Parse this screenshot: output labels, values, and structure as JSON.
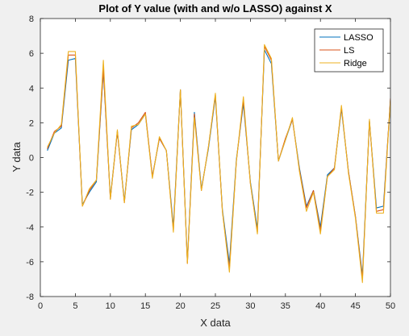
{
  "chart_data": {
    "type": "line",
    "title": "Plot of Y value (with and w/o LASSO) against X",
    "xlabel": "X data",
    "ylabel": "Y data",
    "xlim": [
      0,
      50
    ],
    "ylim": [
      -8,
      8
    ],
    "xticks": [
      0,
      5,
      10,
      15,
      20,
      25,
      30,
      35,
      40,
      45,
      50
    ],
    "yticks": [
      -8,
      -6,
      -4,
      -2,
      0,
      2,
      4,
      6,
      8
    ],
    "grid": false,
    "legend_position": "top-right",
    "x": [
      1,
      2,
      3,
      4,
      5,
      6,
      7,
      8,
      9,
      10,
      11,
      12,
      13,
      14,
      15,
      16,
      17,
      18,
      19,
      20,
      21,
      22,
      23,
      24,
      25,
      26,
      27,
      28,
      29,
      30,
      31,
      32,
      33,
      34,
      35,
      36,
      37,
      38,
      39,
      40,
      41,
      42,
      43,
      44,
      45,
      46,
      47,
      48,
      49,
      50
    ],
    "series": [
      {
        "name": "LASSO",
        "color": "#0072BD",
        "values": [
          0.4,
          1.4,
          1.7,
          5.6,
          5.7,
          -2.7,
          -2.0,
          -1.4,
          5.0,
          -2.3,
          1.5,
          -2.5,
          1.6,
          1.9,
          2.5,
          -1.1,
          1.1,
          0.4,
          -4.0,
          3.9,
          -6.0,
          2.6,
          -1.8,
          0.5,
          3.5,
          -3.0,
          -6.1,
          -0.1,
          3.1,
          -1.4,
          -4.1,
          6.2,
          5.4,
          -0.2,
          1.0,
          2.2,
          -0.6,
          -2.8,
          -1.9,
          -4.0,
          -1.0,
          -0.6,
          2.8,
          -0.8,
          -3.4,
          -6.8,
          2.1,
          -2.9,
          -2.8,
          3.3
        ]
      },
      {
        "name": "LS",
        "color": "#D95319",
        "values": [
          0.5,
          1.5,
          1.8,
          5.9,
          5.9,
          -2.8,
          -1.9,
          -1.3,
          5.1,
          -2.4,
          1.5,
          -2.6,
          1.7,
          2.0,
          2.6,
          -1.1,
          1.1,
          0.4,
          -4.2,
          3.9,
          -6.1,
          2.5,
          -1.9,
          0.6,
          3.6,
          -3.1,
          -6.4,
          -0.2,
          3.3,
          -1.5,
          -4.3,
          6.4,
          5.6,
          -0.2,
          1.1,
          2.2,
          -0.7,
          -2.9,
          -1.9,
          -4.2,
          -1.1,
          -0.6,
          2.9,
          -0.8,
          -3.4,
          -7.0,
          2.1,
          -3.1,
          -3.0,
          3.4
        ]
      },
      {
        "name": "Ridge",
        "color": "#EDB120",
        "values": [
          0.6,
          1.4,
          1.9,
          6.1,
          6.1,
          -2.8,
          -1.8,
          -1.3,
          5.6,
          -2.4,
          1.6,
          -2.6,
          1.8,
          1.9,
          2.5,
          -1.2,
          1.2,
          0.4,
          -4.3,
          3.9,
          -6.1,
          2.3,
          -1.9,
          0.6,
          3.7,
          -3.1,
          -6.6,
          -0.2,
          3.5,
          -1.5,
          -4.4,
          6.5,
          5.7,
          -0.2,
          1.0,
          2.3,
          -0.8,
          -3.1,
          -2.0,
          -4.4,
          -1.1,
          -0.7,
          3.0,
          -0.9,
          -3.5,
          -7.2,
          2.2,
          -3.2,
          -3.2,
          3.3
        ]
      }
    ]
  }
}
